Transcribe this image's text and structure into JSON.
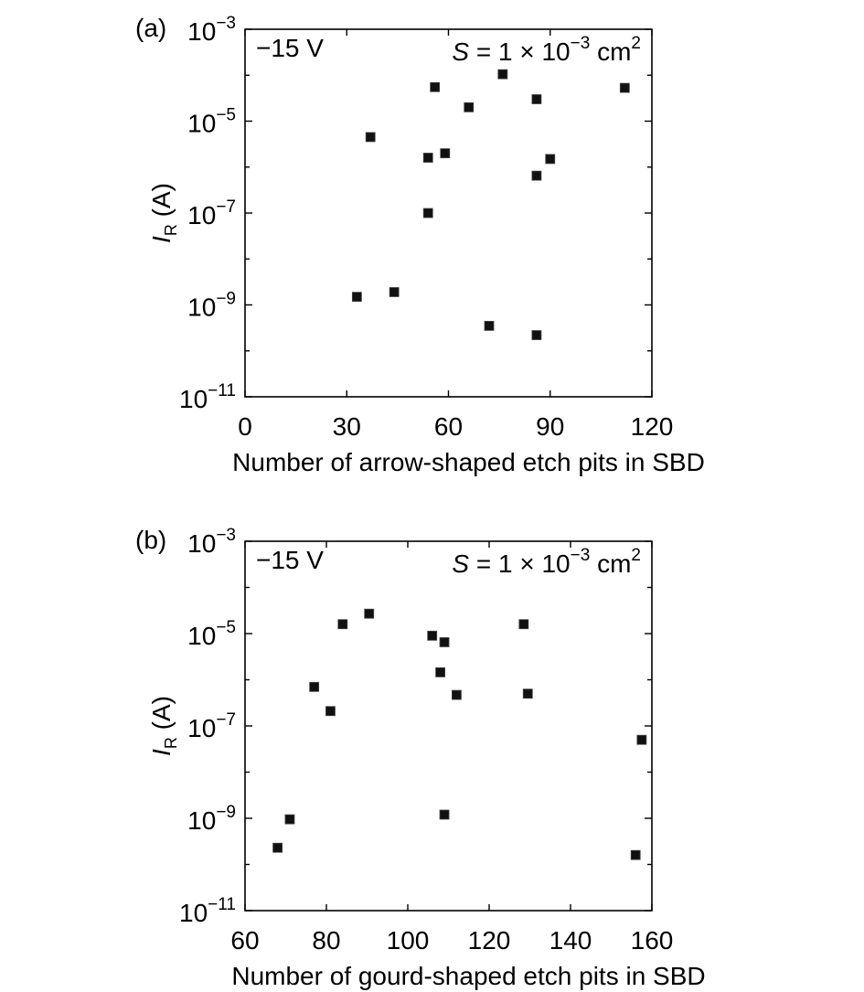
{
  "chart_data": [
    {
      "type": "scatter",
      "panel_label": "(a)",
      "voltage_label": "−15 V",
      "area_label": {
        "symbol": "S",
        "rest": " = 1 × 10",
        "exp": "−3",
        "unit": " cm",
        "unit_exp": "2"
      },
      "xlabel": "Number of arrow-shaped etch pits in SBD",
      "ylabel": {
        "main": "I",
        "sub": "R",
        "unit": " (A)"
      },
      "xlim": [
        0,
        120
      ],
      "xticks": [
        0,
        30,
        60,
        90,
        120
      ],
      "ylim": [
        1e-11,
        0.001
      ],
      "yscale": "log",
      "yticks": [
        {
          "value": 0.001,
          "base": "10",
          "exp": "−3"
        },
        {
          "value": 1e-05,
          "base": "10",
          "exp": "−5"
        },
        {
          "value": 1e-07,
          "base": "10",
          "exp": "−7"
        },
        {
          "value": 1e-09,
          "base": "10",
          "exp": "−9"
        },
        {
          "value": 1e-11,
          "base": "10",
          "exp": "−11"
        }
      ],
      "points": [
        {
          "x": 33,
          "y": 1.5e-09
        },
        {
          "x": 37,
          "y": 4.5e-06
        },
        {
          "x": 44,
          "y": 1.9e-09
        },
        {
          "x": 54,
          "y": 1.6e-06
        },
        {
          "x": 54,
          "y": 1e-07
        },
        {
          "x": 56,
          "y": 5.5e-05
        },
        {
          "x": 59,
          "y": 2e-06
        },
        {
          "x": 66,
          "y": 2e-05
        },
        {
          "x": 72,
          "y": 3.5e-10
        },
        {
          "x": 76,
          "y": 0.000105
        },
        {
          "x": 86,
          "y": 3e-05
        },
        {
          "x": 86,
          "y": 6.5e-07
        },
        {
          "x": 86,
          "y": 2.2e-10
        },
        {
          "x": 90,
          "y": 1.5e-06
        },
        {
          "x": 112,
          "y": 5.3e-05
        }
      ]
    },
    {
      "type": "scatter",
      "panel_label": "(b)",
      "voltage_label": "−15 V",
      "area_label": {
        "symbol": "S",
        "rest": " = 1 × 10",
        "exp": "−3",
        "unit": " cm",
        "unit_exp": "2"
      },
      "xlabel": "Number of gourd-shaped etch pits in SBD",
      "ylabel": {
        "main": "I",
        "sub": "R",
        "unit": " (A)"
      },
      "xlim": [
        60,
        160
      ],
      "xticks": [
        60,
        80,
        100,
        120,
        140,
        160
      ],
      "ylim": [
        1e-11,
        0.001
      ],
      "yscale": "log",
      "yticks": [
        {
          "value": 0.001,
          "base": "10",
          "exp": "−3"
        },
        {
          "value": 1e-05,
          "base": "10",
          "exp": "−5"
        },
        {
          "value": 1e-07,
          "base": "10",
          "exp": "−7"
        },
        {
          "value": 1e-09,
          "base": "10",
          "exp": "−9"
        },
        {
          "value": 1e-11,
          "base": "10",
          "exp": "−11"
        }
      ],
      "points": [
        {
          "x": 68,
          "y": 2.3e-10
        },
        {
          "x": 71,
          "y": 9.5e-10
        },
        {
          "x": 77,
          "y": 7e-07
        },
        {
          "x": 81,
          "y": 2.1e-07
        },
        {
          "x": 84,
          "y": 1.6e-05
        },
        {
          "x": 90.5,
          "y": 2.7e-05
        },
        {
          "x": 106,
          "y": 9e-06
        },
        {
          "x": 108,
          "y": 1.45e-06
        },
        {
          "x": 109,
          "y": 6.5e-06
        },
        {
          "x": 109,
          "y": 1.2e-09
        },
        {
          "x": 112,
          "y": 4.7e-07
        },
        {
          "x": 128.5,
          "y": 1.6e-05
        },
        {
          "x": 129.5,
          "y": 5e-07
        },
        {
          "x": 156,
          "y": 1.6e-10
        },
        {
          "x": 157.5,
          "y": 5e-08
        }
      ]
    }
  ]
}
